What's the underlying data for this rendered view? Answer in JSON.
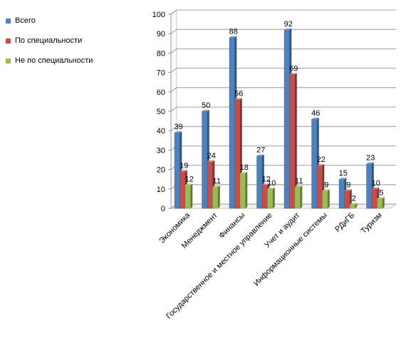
{
  "chart_data": {
    "type": "bar",
    "categories": [
      "Экономика",
      "Менеджмент",
      "Финансы",
      "Государственное и местное управление",
      "Учет и аудит",
      "Информационные системы",
      "РДиГБ",
      "Туризм"
    ],
    "series": [
      {
        "name": "Всего",
        "values": [
          39,
          50,
          88,
          27,
          92,
          46,
          15,
          23
        ],
        "color": "#4F81BD"
      },
      {
        "name": "По специальности",
        "values": [
          19,
          24,
          56,
          12,
          69,
          22,
          9,
          10
        ],
        "color": "#C0504D"
      },
      {
        "name": "Не по специальности",
        "values": [
          12,
          11,
          18,
          10,
          11,
          9,
          2,
          5
        ],
        "color": "#9BBB59"
      }
    ],
    "yticks": [
      "0",
      "10",
      "20",
      "30",
      "40",
      "50",
      "60",
      "70",
      "80",
      "90",
      "100"
    ],
    "ylim": [
      0,
      100
    ],
    "grid": true,
    "legend_position": "left",
    "style": "3d-clustered-bar"
  }
}
